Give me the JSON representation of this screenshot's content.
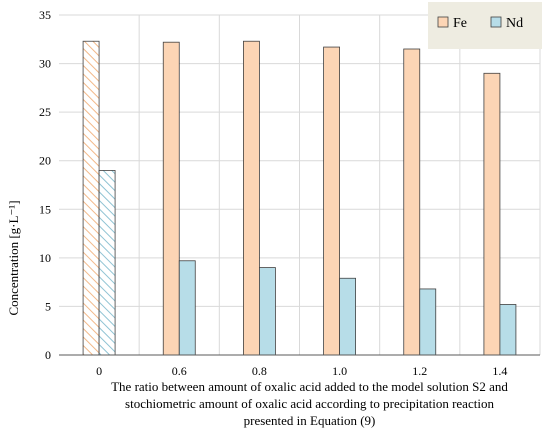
{
  "chart_data": {
    "type": "bar",
    "categories": [
      "0",
      "0.6",
      "0.8",
      "1.0",
      "1.2",
      "1.4"
    ],
    "series": [
      {
        "name": "Fe",
        "values": [
          32.3,
          32.2,
          32.3,
          31.7,
          31.5,
          29.0
        ],
        "color": "#fcd5b5",
        "hatched_categories": [
          "0"
        ]
      },
      {
        "name": "Nd",
        "values": [
          19.0,
          9.7,
          9.0,
          7.9,
          6.8,
          5.2
        ],
        "color": "#b7dde8",
        "hatched_categories": [
          "0"
        ]
      }
    ],
    "ylabel": "Concentration [g·L⁻¹]",
    "xlabel_lines": [
      "The ratio between amount of oxalic acid added to the model solution S2 and",
      "stochiometric amount of oxalic acid according to precipitation reaction",
      "presented in Equation (9)"
    ],
    "ylim": [
      0,
      35
    ],
    "yticks": [
      0,
      5,
      10,
      15,
      20,
      25,
      30,
      35
    ],
    "grid": true,
    "legend_position": "top-right",
    "legend_background": "#eeece1"
  }
}
